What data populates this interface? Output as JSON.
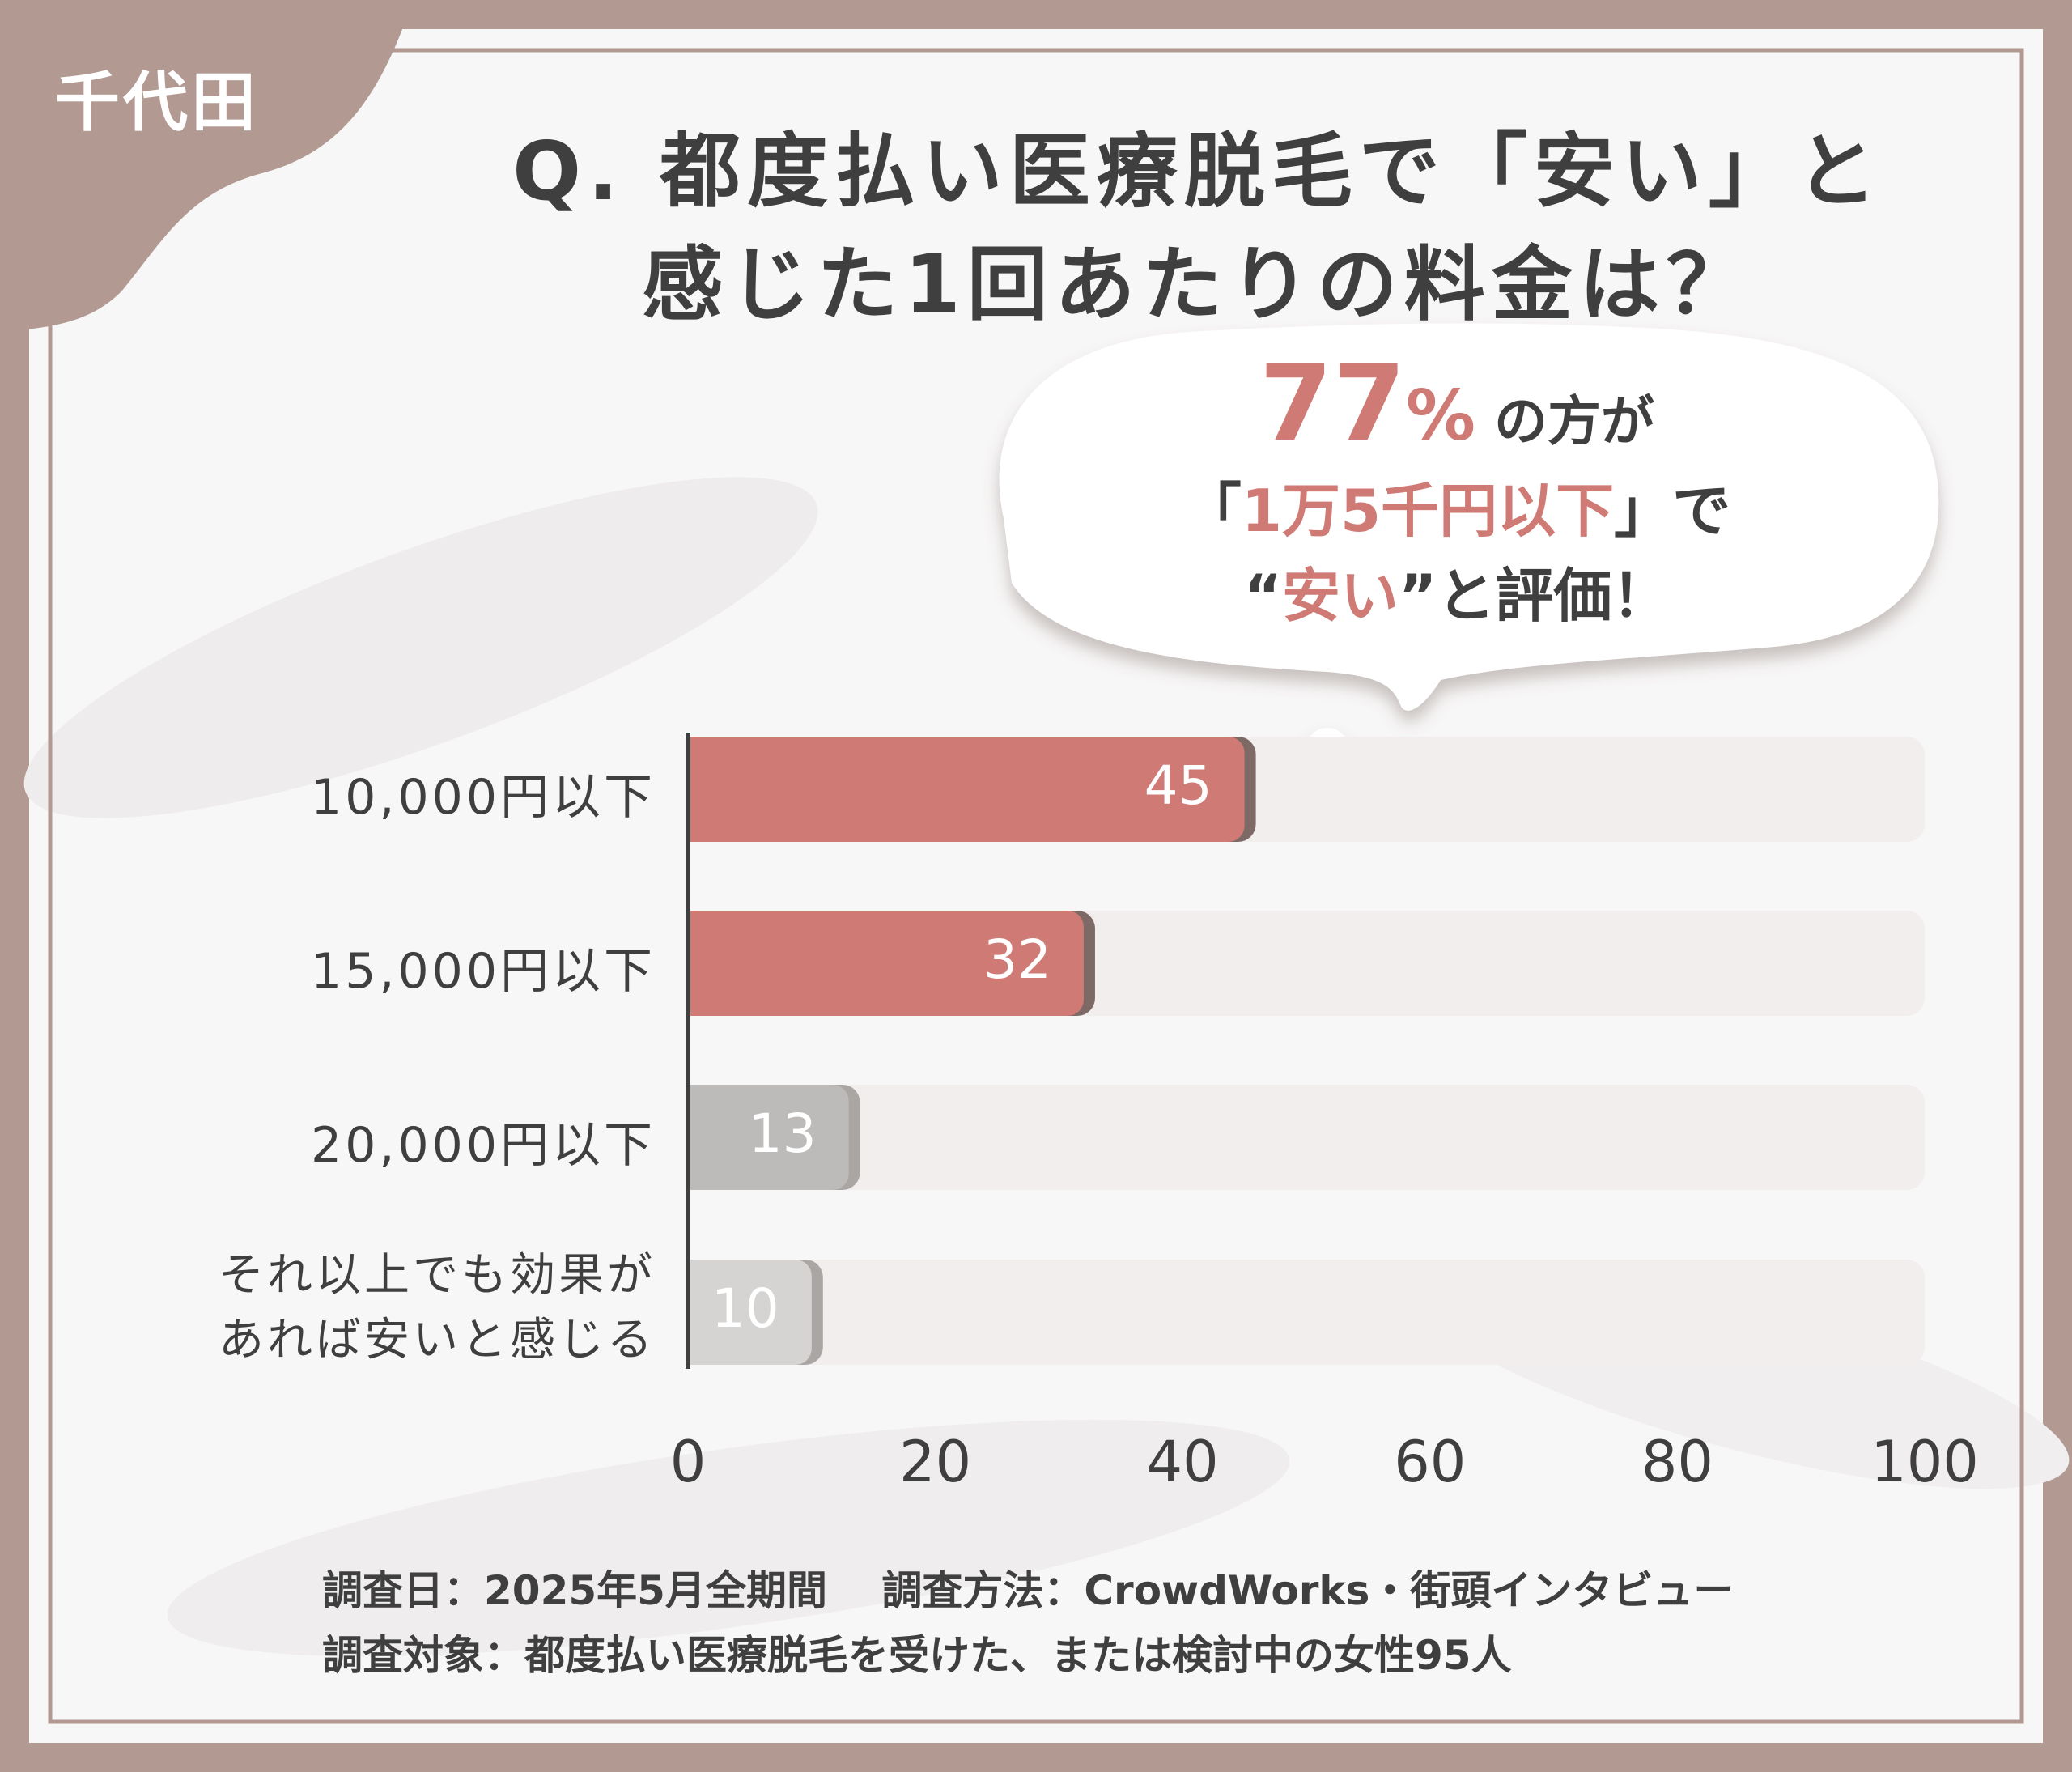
{
  "badge": "千代田",
  "title_line1": "Q. 都度払い医療脱毛で「安い」と",
  "title_line2": "感じた1回あたりの料金は？",
  "callout": {
    "pct_number": "77",
    "pct_sign": "%",
    "line1_rest": "の方が",
    "line2_open": "「",
    "line2_highlight": "1万5千円以下",
    "line2_close": "」で",
    "line3_open": "“",
    "line3_highlight": "安い",
    "line3_rest": "”と評価！"
  },
  "chart_data": {
    "type": "bar",
    "orientation": "horizontal",
    "categories": [
      "10,000円以下",
      "15,000円以下",
      "20,000円以下",
      "それ以上でも効果が\nあれば安いと感じる"
    ],
    "values": [
      45,
      32,
      13,
      10
    ],
    "xlim": [
      0,
      100
    ],
    "xticks": [
      "0",
      "20",
      "40",
      "60",
      "80",
      "100"
    ],
    "grid": false,
    "colors": {
      "highlight": "#cf7a74",
      "highlight_shadow": "#7d6a66",
      "muted": [
        "#bdbbba",
        "#d6d4d3"
      ],
      "muted_shadow": "#a9a6a4",
      "track": "#f1eeed"
    }
  },
  "footer": {
    "line1": "調査日：2025年5月全期間　 調査方法：CrowdWorks・街頭インタビュー",
    "line2": "調査対象：都度払い医療脱毛を受けた、または検討中の女性95人"
  },
  "colors": {
    "frame": "#b29a92",
    "panel": "#f7f6f6",
    "text": "#3f3f3f",
    "accent": "#cf7a74"
  }
}
